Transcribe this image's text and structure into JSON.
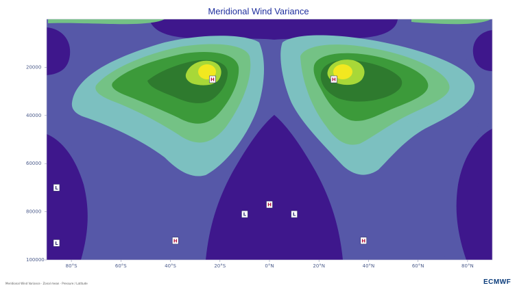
{
  "chart_data": {
    "type": "heatmap",
    "title": "Meridional Wind Variance",
    "x_ticks": [
      "80°S",
      "60°S",
      "40°S",
      "20°S",
      "0°N",
      "20°N",
      "40°N",
      "60°N",
      "80°N"
    ],
    "y_ticks": [
      "20000",
      "40000",
      "60000",
      "80000",
      "100000"
    ],
    "xlim": [
      "90°S",
      "90°N"
    ],
    "ylim": [
      0,
      100000
    ],
    "y_inverted": true,
    "grid": false,
    "legend": "none",
    "colors": {
      "level1": "#3e178c",
      "level2": "#5658a8",
      "level3": "#7cc0c0",
      "level4": "#74c285",
      "level5": "#3c9a3a",
      "level6": "#2e7a2e",
      "level7": "#a8d838",
      "level8": "#f2e820",
      "title": "#1f2f9e"
    },
    "markers": [
      {
        "label": "H",
        "x": -23,
        "y": 25000
      },
      {
        "label": "H",
        "x": 26,
        "y": 25000
      },
      {
        "label": "L",
        "x": -86,
        "y": 70000
      },
      {
        "label": "L",
        "x": -86,
        "y": 93000
      },
      {
        "label": "H",
        "x": -38,
        "y": 92000
      },
      {
        "label": "L",
        "x": -10,
        "y": 81000
      },
      {
        "label": "H",
        "x": 0,
        "y": 77000
      },
      {
        "label": "L",
        "x": 10,
        "y": 81000
      },
      {
        "label": "H",
        "x": 38,
        "y": 92000
      }
    ]
  },
  "footer": {
    "note": "Meridional Wind Variance · Zonal mean · Pressure / Latitude",
    "logo": "ECMWF"
  }
}
